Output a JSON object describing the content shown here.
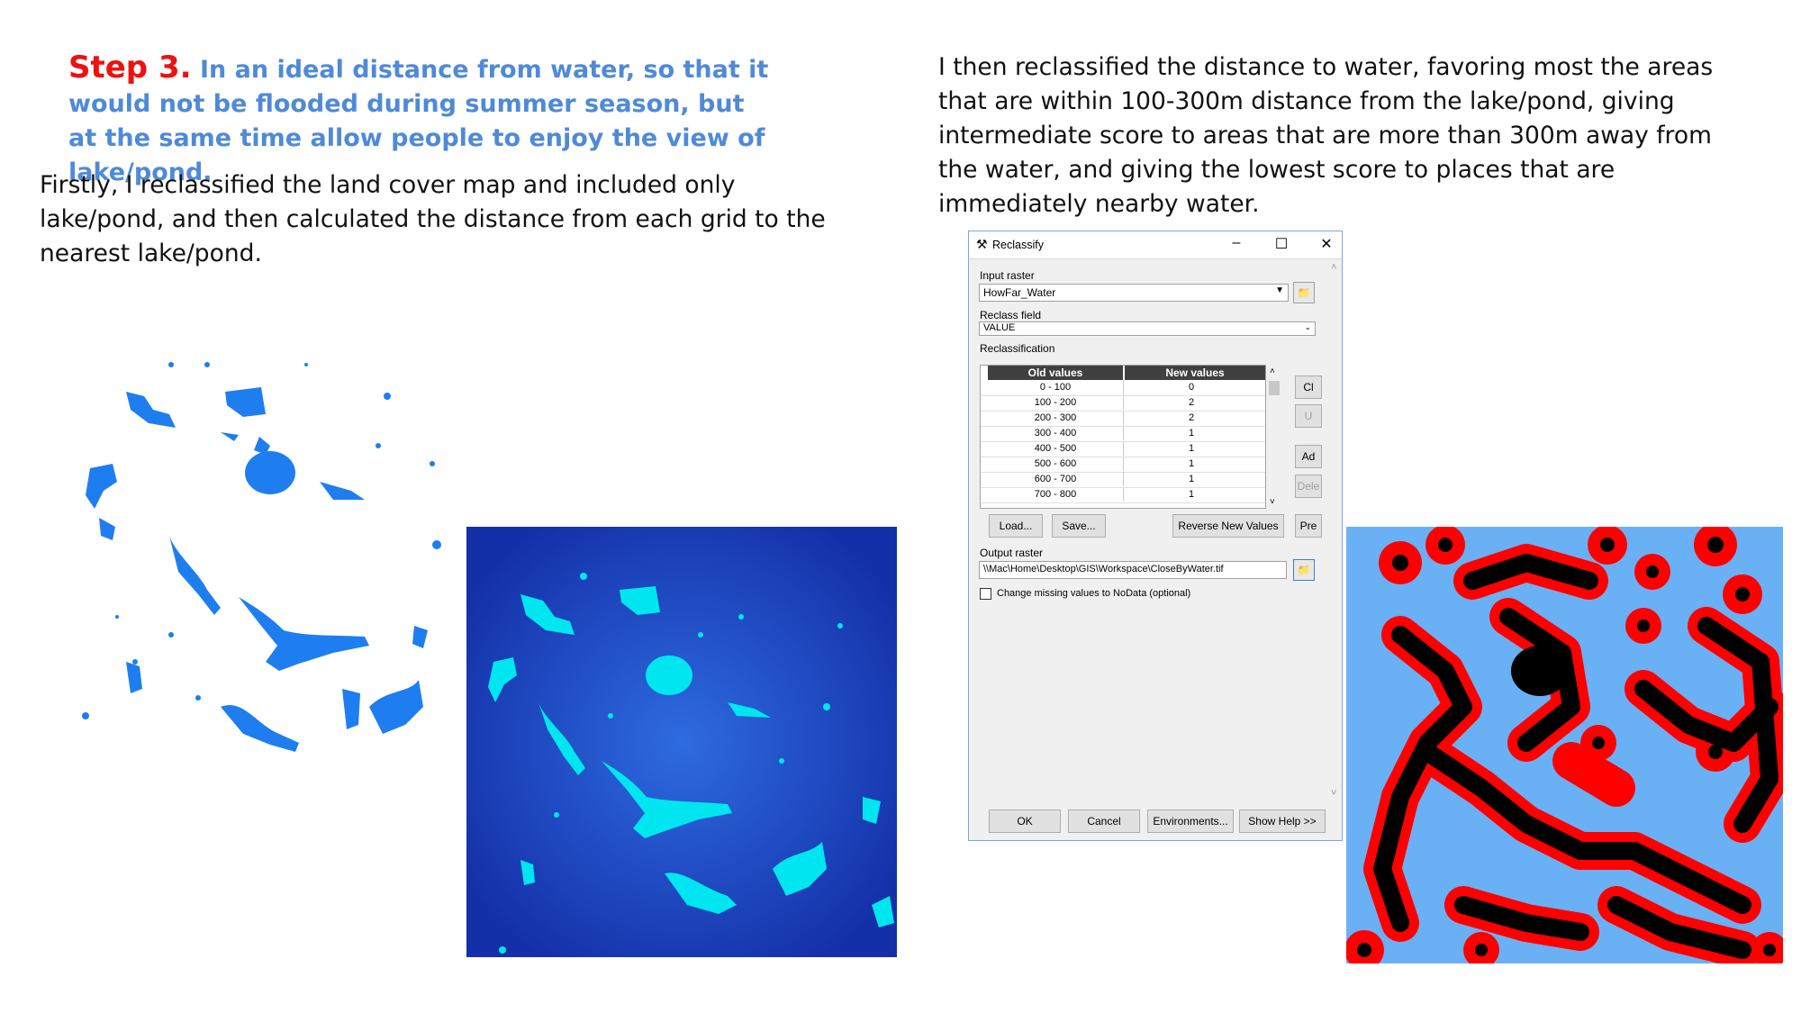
{
  "step": {
    "label": "Step 3.",
    "title": "In an ideal distance from water, so that it would not be flooded during summer season, but at the same time allow people to enjoy the view of lake/pond."
  },
  "left_paragraph": "Firstly, I reclassified the land cover map and included only lake/pond, and then calculated the distance from each grid to the nearest lake/pond.",
  "right_paragraph": "I then reclassified the distance to water, favoring most the areas that are within 100-300m distance from the lake/pond, giving intermediate score to areas that are more than 300m away from the water, and giving the lowest score to places that are immediately nearby  water.",
  "colors": {
    "step_label": "#ee1111",
    "step_title": "#4f8ad8",
    "lake_blue": "#1e7ef0",
    "lake_cyan": "#00e6f0",
    "distance_dark": "#1836b0",
    "reclass_red": "#ff0000",
    "reclass_black": "#000000",
    "reclass_bg": "#6ab0f5"
  },
  "dialog": {
    "title": "Reclassify",
    "title_icon": "hammer-icon",
    "input_raster_label": "Input raster",
    "input_raster_value": "HowFar_Water",
    "reclass_field_label": "Reclass field",
    "reclass_field_value": "VALUE",
    "reclassification_label": "Reclassification",
    "columns": [
      "Old values",
      "New values"
    ],
    "rows": [
      [
        "0 - 100",
        "0"
      ],
      [
        "100 - 200",
        "2"
      ],
      [
        "200 - 300",
        "2"
      ],
      [
        "300 - 400",
        "1"
      ],
      [
        "400 - 500",
        "1"
      ],
      [
        "500 - 600",
        "1"
      ],
      [
        "600 - 700",
        "1"
      ],
      [
        "700 - 800",
        "1"
      ]
    ],
    "side_buttons": [
      "Cl",
      "U",
      "Ad",
      "Dele"
    ],
    "load_button": "Load...",
    "save_button": "Save...",
    "reverse_button": "Reverse New Values",
    "pre_button": "Pre",
    "output_raster_label": "Output raster",
    "output_raster_value": "\\\\Mac\\Home\\Desktop\\GIS\\Workspace\\CloseByWater.tif",
    "checkbox_label": "Change missing values to NoData (optional)",
    "ok_button": "OK",
    "cancel_button": "Cancel",
    "environments_button": "Environments...",
    "help_button": "Show Help >>"
  }
}
